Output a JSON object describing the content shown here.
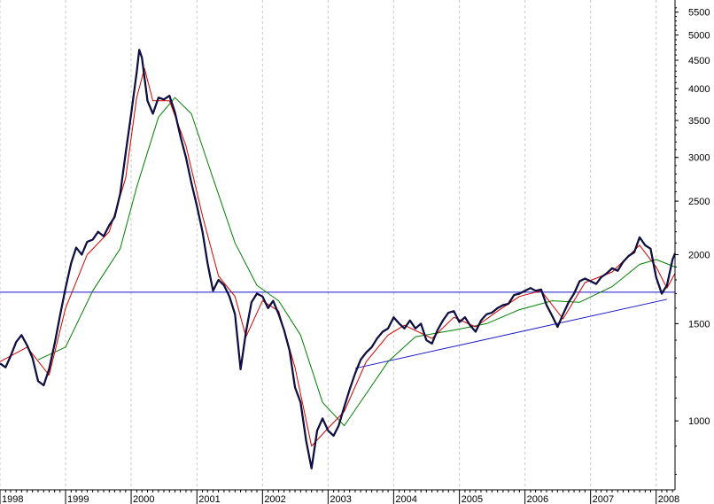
{
  "chart_data": {
    "type": "line",
    "title": "",
    "xlabel": "",
    "ylabel": "",
    "y_scale": "log",
    "ylim": [
      750,
      5700
    ],
    "xlim": [
      "1998-01-01",
      "2008-04-15"
    ],
    "x_tick_labels": [
      "1998",
      "1999",
      "2000",
      "2001",
      "2002",
      "2003",
      "2004",
      "2005",
      "2006",
      "2007",
      "2008"
    ],
    "y_tick_labels": [
      "5500",
      "5000",
      "4500",
      "4000",
      "3500",
      "3000",
      "2500",
      "2000",
      "1500",
      "1000"
    ],
    "grid": {
      "x": true,
      "y": false,
      "style": "dashed"
    },
    "colors": {
      "price": "#000000",
      "price_highlight": "#1a1aa8",
      "ma_fast": "#d40000",
      "ma_slow": "#008000",
      "reference": "#1515cc",
      "grid": "#c8c8c8",
      "axis": "#000000"
    },
    "series": [
      {
        "kind": "price",
        "points": [
          [
            "1998-01-01",
            1270
          ],
          [
            "1998-02-01",
            1250
          ],
          [
            "1998-03-01",
            1310
          ],
          [
            "1998-04-01",
            1390
          ],
          [
            "1998-05-01",
            1430
          ],
          [
            "1998-06-01",
            1370
          ],
          [
            "1998-07-01",
            1300
          ],
          [
            "1998-08-01",
            1180
          ],
          [
            "1998-09-01",
            1160
          ],
          [
            "1998-10-01",
            1240
          ],
          [
            "1998-11-01",
            1380
          ],
          [
            "1998-12-01",
            1550
          ],
          [
            "1999-01-01",
            1740
          ],
          [
            "1999-02-01",
            1930
          ],
          [
            "1999-03-01",
            2060
          ],
          [
            "1999-04-01",
            2000
          ],
          [
            "1999-05-01",
            2110
          ],
          [
            "1999-06-01",
            2130
          ],
          [
            "1999-07-01",
            2200
          ],
          [
            "1999-08-01",
            2160
          ],
          [
            "1999-09-01",
            2260
          ],
          [
            "1999-10-01",
            2340
          ],
          [
            "1999-11-01",
            2580
          ],
          [
            "1999-12-01",
            3050
          ],
          [
            "2000-01-01",
            3600
          ],
          [
            "2000-02-01",
            4280
          ],
          [
            "2000-02-15",
            4700
          ],
          [
            "2000-03-01",
            4550
          ],
          [
            "2000-04-01",
            3800
          ],
          [
            "2000-05-01",
            3600
          ],
          [
            "2000-06-01",
            3850
          ],
          [
            "2000-07-01",
            3820
          ],
          [
            "2000-08-01",
            3880
          ],
          [
            "2000-09-01",
            3620
          ],
          [
            "2000-10-01",
            3280
          ],
          [
            "2000-11-01",
            3000
          ],
          [
            "2000-12-01",
            2700
          ],
          [
            "2001-01-01",
            2450
          ],
          [
            "2001-02-01",
            2200
          ],
          [
            "2001-03-01",
            1930
          ],
          [
            "2001-04-01",
            1720
          ],
          [
            "2001-05-01",
            1800
          ],
          [
            "2001-06-01",
            1760
          ],
          [
            "2001-07-01",
            1680
          ],
          [
            "2001-08-01",
            1560
          ],
          [
            "2001-09-01",
            1240
          ],
          [
            "2001-10-01",
            1450
          ],
          [
            "2001-11-01",
            1640
          ],
          [
            "2001-12-01",
            1700
          ],
          [
            "2002-01-01",
            1680
          ],
          [
            "2002-02-01",
            1600
          ],
          [
            "2002-03-01",
            1650
          ],
          [
            "2002-04-01",
            1560
          ],
          [
            "2002-05-01",
            1460
          ],
          [
            "2002-06-01",
            1340
          ],
          [
            "2002-07-01",
            1150
          ],
          [
            "2002-08-01",
            1080
          ],
          [
            "2002-09-01",
            920
          ],
          [
            "2002-10-01",
            820
          ],
          [
            "2002-11-01",
            960
          ],
          [
            "2002-12-01",
            1010
          ],
          [
            "2003-01-01",
            960
          ],
          [
            "2003-02-01",
            940
          ],
          [
            "2003-03-01",
            980
          ],
          [
            "2003-04-01",
            1060
          ],
          [
            "2003-05-01",
            1140
          ],
          [
            "2003-06-01",
            1220
          ],
          [
            "2003-07-01",
            1290
          ],
          [
            "2003-08-01",
            1330
          ],
          [
            "2003-09-01",
            1360
          ],
          [
            "2003-10-01",
            1410
          ],
          [
            "2003-11-01",
            1450
          ],
          [
            "2003-12-01",
            1470
          ],
          [
            "2004-01-01",
            1540
          ],
          [
            "2004-02-01",
            1500
          ],
          [
            "2004-03-01",
            1470
          ],
          [
            "2004-04-01",
            1520
          ],
          [
            "2004-05-01",
            1470
          ],
          [
            "2004-06-01",
            1500
          ],
          [
            "2004-07-01",
            1400
          ],
          [
            "2004-08-01",
            1380
          ],
          [
            "2004-09-01",
            1460
          ],
          [
            "2004-10-01",
            1520
          ],
          [
            "2004-11-01",
            1570
          ],
          [
            "2004-12-01",
            1580
          ],
          [
            "2005-01-01",
            1510
          ],
          [
            "2005-02-01",
            1540
          ],
          [
            "2005-03-01",
            1490
          ],
          [
            "2005-04-01",
            1450
          ],
          [
            "2005-05-01",
            1520
          ],
          [
            "2005-06-01",
            1560
          ],
          [
            "2005-07-01",
            1570
          ],
          [
            "2005-08-01",
            1600
          ],
          [
            "2005-09-01",
            1620
          ],
          [
            "2005-10-01",
            1630
          ],
          [
            "2005-11-01",
            1690
          ],
          [
            "2005-12-01",
            1700
          ],
          [
            "2006-01-01",
            1720
          ],
          [
            "2006-02-01",
            1740
          ],
          [
            "2006-03-01",
            1720
          ],
          [
            "2006-04-01",
            1730
          ],
          [
            "2006-05-01",
            1620
          ],
          [
            "2006-06-01",
            1550
          ],
          [
            "2006-07-01",
            1480
          ],
          [
            "2006-08-01",
            1560
          ],
          [
            "2006-09-01",
            1640
          ],
          [
            "2006-10-01",
            1700
          ],
          [
            "2006-11-01",
            1790
          ],
          [
            "2006-12-01",
            1810
          ],
          [
            "2007-01-01",
            1790
          ],
          [
            "2007-02-01",
            1770
          ],
          [
            "2007-03-01",
            1820
          ],
          [
            "2007-04-01",
            1850
          ],
          [
            "2007-05-01",
            1890
          ],
          [
            "2007-06-01",
            1870
          ],
          [
            "2007-07-01",
            1940
          ],
          [
            "2007-08-01",
            1990
          ],
          [
            "2007-09-01",
            2020
          ],
          [
            "2007-10-01",
            2150
          ],
          [
            "2007-11-01",
            2080
          ],
          [
            "2007-12-01",
            2050
          ],
          [
            "2008-01-01",
            1820
          ],
          [
            "2008-02-01",
            1700
          ],
          [
            "2008-03-01",
            1760
          ],
          [
            "2008-04-01",
            1960
          ],
          [
            "2008-04-15",
            2010
          ]
        ]
      },
      {
        "kind": "ma_fast",
        "points": [
          [
            "1998-01-01",
            1280
          ],
          [
            "1998-06-01",
            1360
          ],
          [
            "1998-10-01",
            1210
          ],
          [
            "1999-01-01",
            1600
          ],
          [
            "1999-05-01",
            2000
          ],
          [
            "1999-09-01",
            2200
          ],
          [
            "1999-12-01",
            2750
          ],
          [
            "2000-02-01",
            3850
          ],
          [
            "2000-03-15",
            4350
          ],
          [
            "2000-05-01",
            3800
          ],
          [
            "2000-08-01",
            3800
          ],
          [
            "2000-11-01",
            3150
          ],
          [
            "2001-02-01",
            2350
          ],
          [
            "2001-05-01",
            1830
          ],
          [
            "2001-08-01",
            1680
          ],
          [
            "2001-10-01",
            1420
          ],
          [
            "2002-01-01",
            1650
          ],
          [
            "2002-04-01",
            1580
          ],
          [
            "2002-07-01",
            1250
          ],
          [
            "2002-10-01",
            900
          ],
          [
            "2003-01-01",
            970
          ],
          [
            "2003-04-01",
            1040
          ],
          [
            "2003-08-01",
            1280
          ],
          [
            "2003-12-01",
            1430
          ],
          [
            "2004-03-01",
            1490
          ],
          [
            "2004-08-01",
            1410
          ],
          [
            "2004-12-01",
            1540
          ],
          [
            "2005-04-01",
            1480
          ],
          [
            "2005-08-01",
            1580
          ],
          [
            "2005-12-01",
            1680
          ],
          [
            "2006-04-01",
            1720
          ],
          [
            "2006-08-01",
            1530
          ],
          [
            "2006-12-01",
            1780
          ],
          [
            "2007-05-01",
            1860
          ],
          [
            "2007-10-01",
            2080
          ],
          [
            "2008-01-01",
            1900
          ],
          [
            "2008-03-01",
            1740
          ],
          [
            "2008-04-15",
            1850
          ]
        ]
      },
      {
        "kind": "ma_slow",
        "points": [
          [
            "1998-08-01",
            1290
          ],
          [
            "1999-01-01",
            1360
          ],
          [
            "1999-06-01",
            1720
          ],
          [
            "1999-11-01",
            2050
          ],
          [
            "2000-02-01",
            2650
          ],
          [
            "2000-06-01",
            3550
          ],
          [
            "2000-09-01",
            3850
          ],
          [
            "2000-12-01",
            3600
          ],
          [
            "2001-04-01",
            2750
          ],
          [
            "2001-08-01",
            2100
          ],
          [
            "2001-12-01",
            1760
          ],
          [
            "2002-04-01",
            1650
          ],
          [
            "2002-08-01",
            1430
          ],
          [
            "2002-12-01",
            1080
          ],
          [
            "2003-04-01",
            980
          ],
          [
            "2003-08-01",
            1120
          ],
          [
            "2003-12-01",
            1280
          ],
          [
            "2004-05-01",
            1420
          ],
          [
            "2004-12-01",
            1460
          ],
          [
            "2005-06-01",
            1500
          ],
          [
            "2005-12-01",
            1590
          ],
          [
            "2006-06-01",
            1650
          ],
          [
            "2006-11-01",
            1640
          ],
          [
            "2007-05-01",
            1750
          ],
          [
            "2007-10-01",
            1920
          ],
          [
            "2008-01-01",
            1960
          ],
          [
            "2008-04-15",
            1900
          ]
        ]
      }
    ],
    "reference_lines": [
      {
        "kind": "horizontal",
        "y": 1710
      },
      {
        "kind": "trendline",
        "points": [
          [
            "2003-06-01",
            1245
          ],
          [
            "2008-03-01",
            1660
          ]
        ]
      }
    ]
  }
}
